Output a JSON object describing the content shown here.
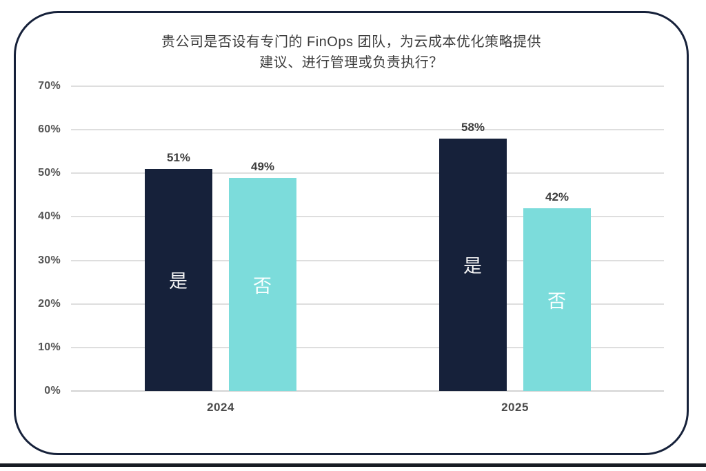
{
  "chart_data": {
    "type": "bar",
    "title_lines": [
      "贵公司是否设有专门的 FinOps 团队，为云成本优化策略提供",
      "建议、进行管理或负责执行？"
    ],
    "categories": [
      "2024",
      "2025"
    ],
    "series": [
      {
        "name": "是",
        "values": [
          51,
          58
        ],
        "color": "#16213A",
        "label_color": "#F5F5F5"
      },
      {
        "name": "否",
        "values": [
          49,
          42
        ],
        "color": "#7CDCDB",
        "label_color": "#FCFFFF"
      }
    ],
    "value_suffix": "%",
    "y_axis": {
      "min": 0,
      "max": 70,
      "tick_step": 10,
      "tick_labels": [
        "0%",
        "10%",
        "20%",
        "30%",
        "40%",
        "50%",
        "60%",
        "70%"
      ]
    },
    "grid": true,
    "legend_position": "none",
    "colors": {
      "grid": "#DEDEDE",
      "axis": "#D3D3D3",
      "tick_text": "#545454",
      "category_text": "#4A4A4A",
      "value_text": "#3D3D3D",
      "title_text": "#3C3C3C",
      "frame_border": "#16213A",
      "bottom_edge": "#171C24",
      "background": "#FFFFFF"
    }
  }
}
